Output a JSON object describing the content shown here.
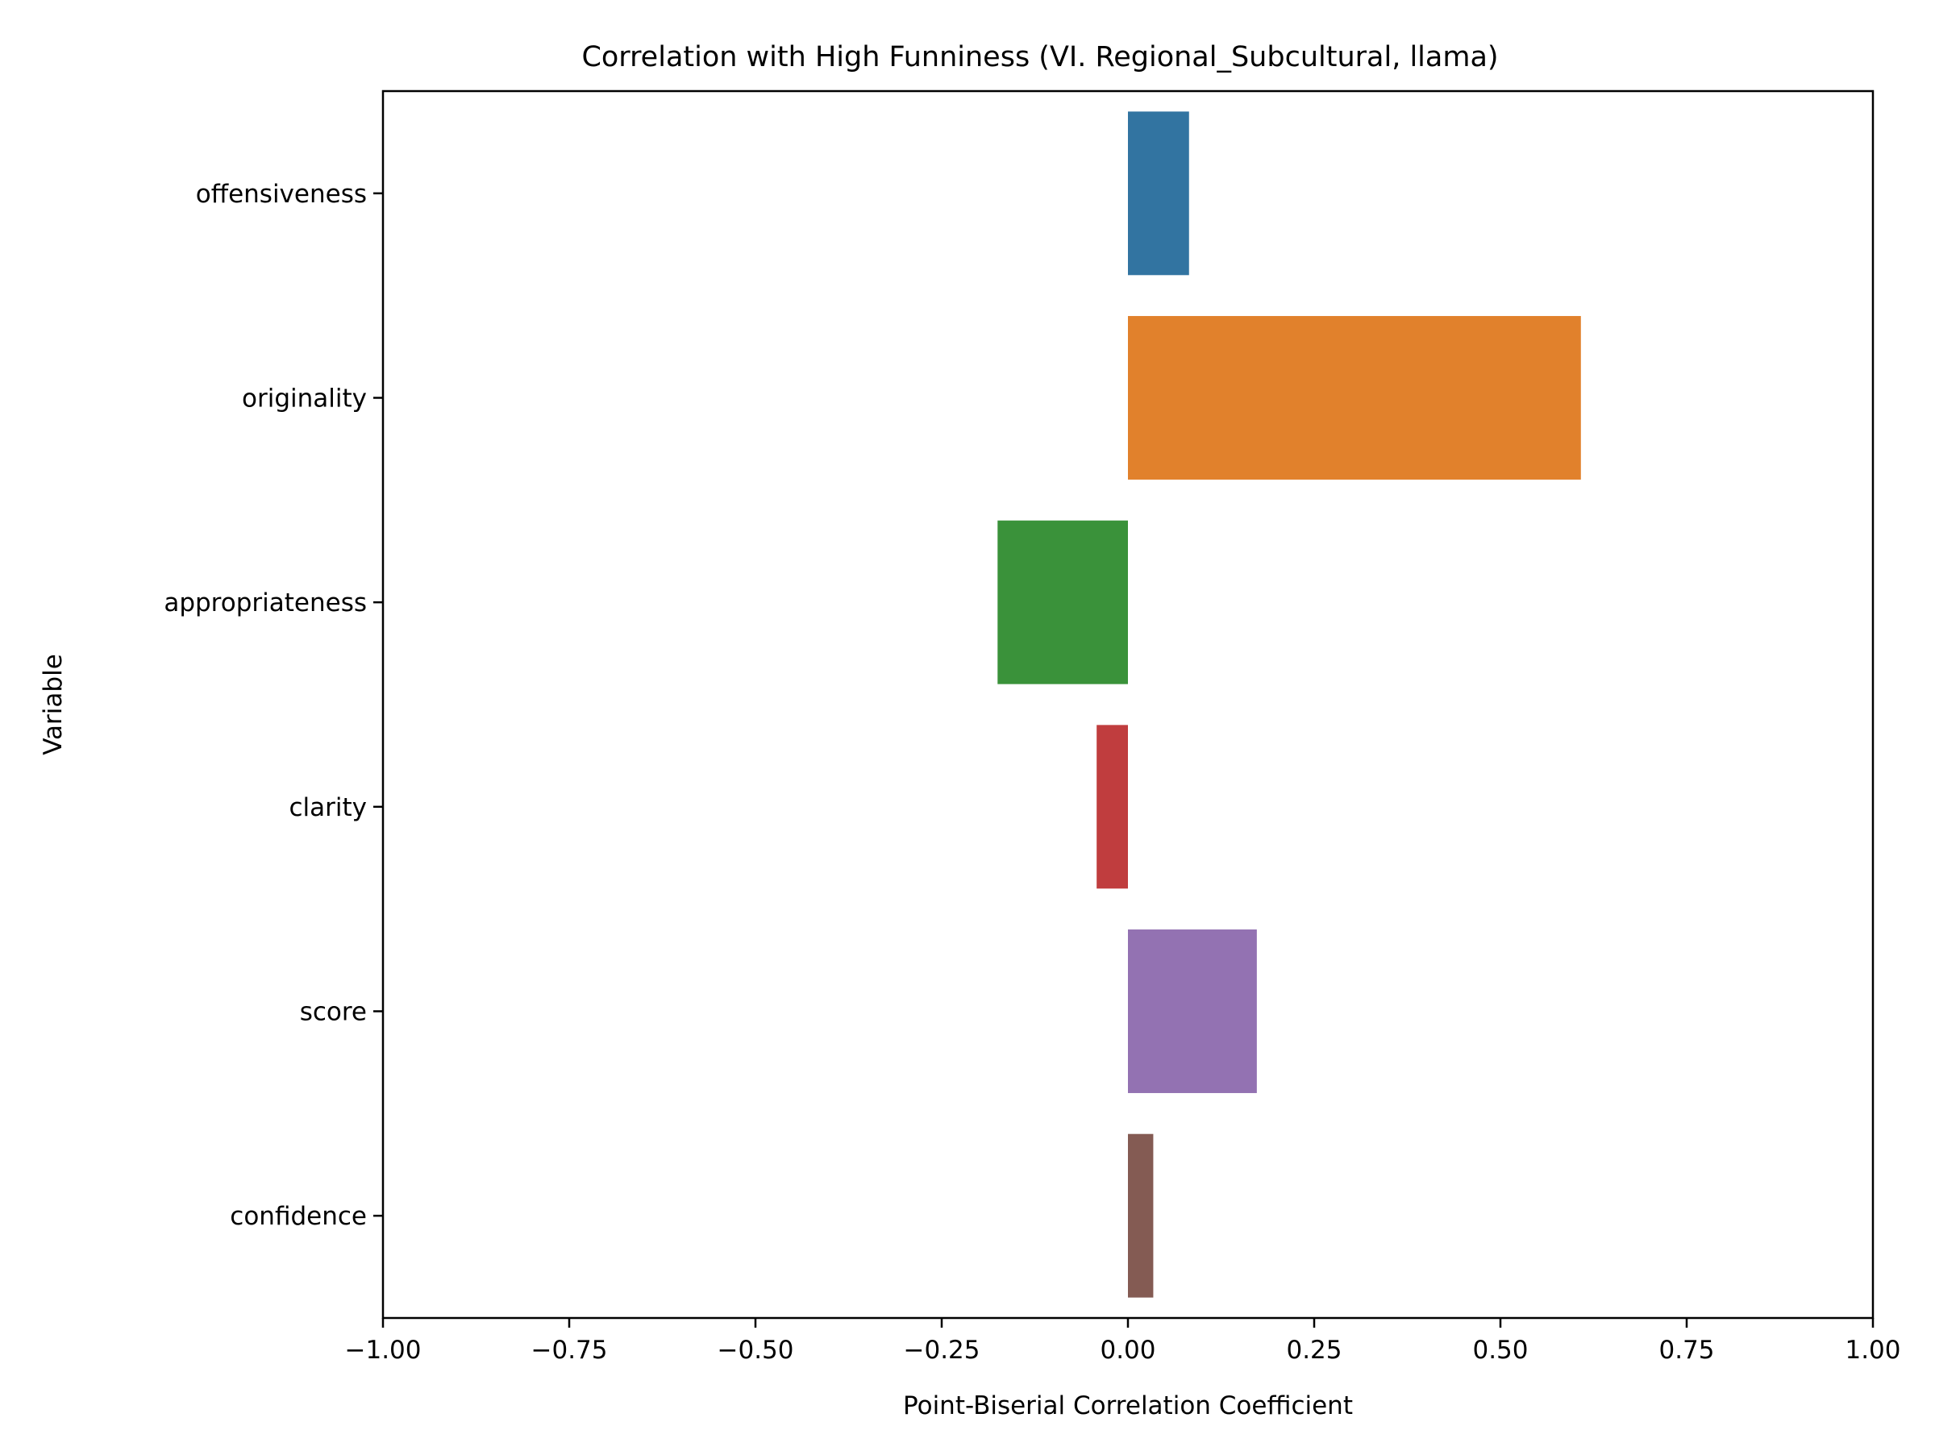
{
  "chart_data": {
    "type": "bar",
    "orientation": "horizontal",
    "title": "Correlation with High Funniness (VI. Regional_Subcultural, llama)",
    "xlabel": "Point-Biserial Correlation Coefficient",
    "ylabel": "Variable",
    "xlim": [
      -1.0,
      1.0
    ],
    "xticks": [
      -1.0,
      -0.75,
      -0.5,
      -0.25,
      0.0,
      0.25,
      0.5,
      0.75,
      1.0
    ],
    "xtick_labels": [
      "−1.00",
      "−0.75",
      "−0.50",
      "−0.25",
      "0.00",
      "0.25",
      "0.50",
      "0.75",
      "1.00"
    ],
    "categories": [
      "offensiveness",
      "originality",
      "appropriateness",
      "clarity",
      "score",
      "confidence"
    ],
    "values": [
      0.082,
      0.608,
      -0.175,
      -0.042,
      0.173,
      0.034
    ],
    "colors": [
      "#3274a1",
      "#e1812c",
      "#3a923a",
      "#c03d3e",
      "#9372b2",
      "#845b53"
    ],
    "grid": false,
    "legend": "none"
  }
}
